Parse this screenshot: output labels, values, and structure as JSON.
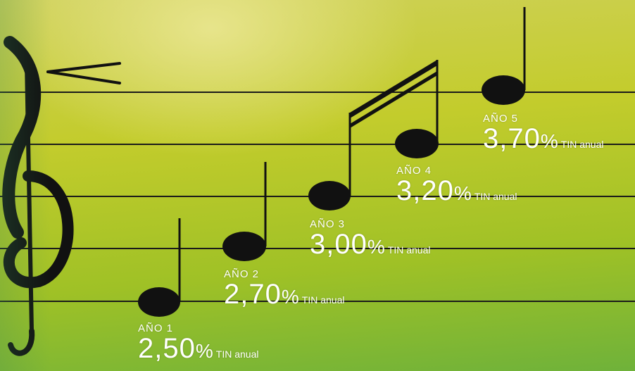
{
  "colors": {
    "background_top": "#cfd15a",
    "background_bottom": "#6fb23a",
    "ink": "#111111",
    "text": "#ffffff"
  },
  "decorations": [
    "treble-clef",
    "staff-lines",
    "crescendo-sign",
    "music-notes",
    "beam-16th"
  ],
  "notes": [
    {
      "year": "AÑO 1",
      "rate": "2,50",
      "percent": "%",
      "unit": "TIN anual"
    },
    {
      "year": "AÑO 2",
      "rate": "2,70",
      "percent": "%",
      "unit": "TIN anual"
    },
    {
      "year": "AÑO 3",
      "rate": "3,00",
      "percent": "%",
      "unit": "TIN anual"
    },
    {
      "year": "AÑO 4",
      "rate": "3,20",
      "percent": "%",
      "unit": "TIN anual"
    },
    {
      "year": "AÑO 5",
      "rate": "3,70",
      "percent": "%",
      "unit": "TIN anual"
    }
  ]
}
